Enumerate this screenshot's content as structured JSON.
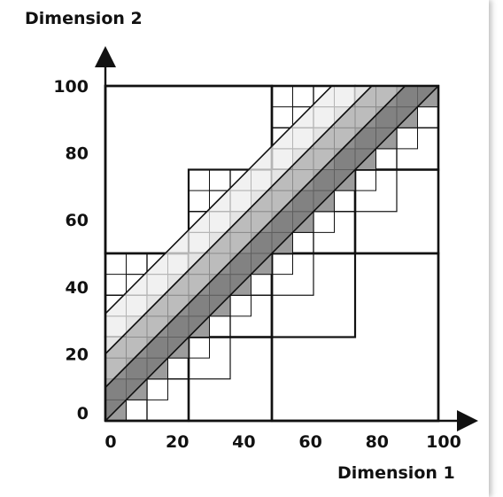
{
  "colors": {
    "band_dark": "#7a7a7a",
    "band_mid": "#b6b6b6",
    "band_light": "#ececec",
    "cell_mid": "#9c9c9c",
    "cell_light": "#cfcfcf",
    "stroke": "#111111"
  },
  "chart_data": {
    "type": "diagram",
    "xlabel": "Dimension 1",
    "ylabel": "Dimension 2",
    "xlim": [
      0,
      100
    ],
    "ylim": [
      0,
      100
    ],
    "x_ticks": [
      0,
      20,
      40,
      60,
      80,
      100
    ],
    "y_ticks": [
      0,
      20,
      40,
      60,
      80,
      100
    ],
    "bands": [
      {
        "offset_low": 0,
        "offset_high": 10,
        "shade": "band_dark"
      },
      {
        "offset_low": 10,
        "offset_high": 20,
        "shade": "band_mid"
      },
      {
        "offset_low": 20,
        "offset_high": 32,
        "shade": "band_light"
      }
    ]
  }
}
